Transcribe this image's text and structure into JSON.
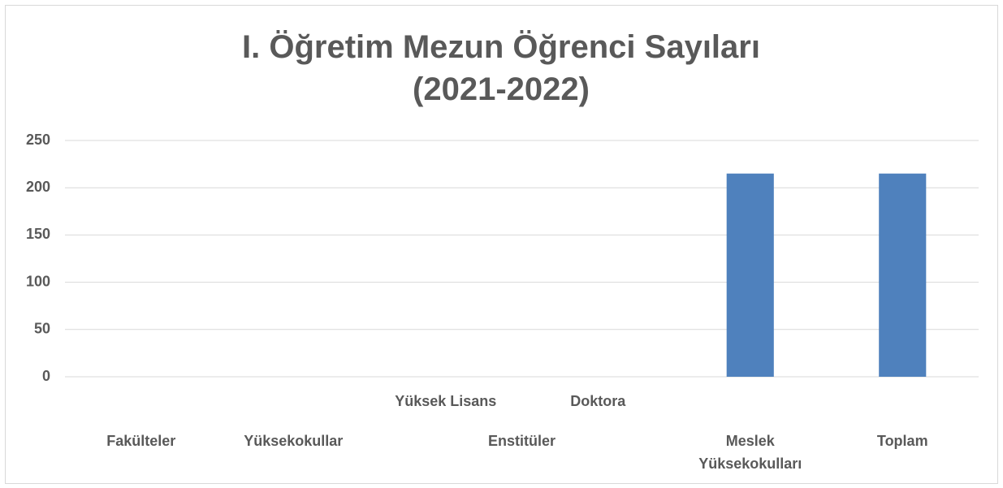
{
  "chart_data": {
    "type": "bar",
    "title": "I. Öğretim Mezun Öğrenci Sayıları (2021-2022)",
    "categories": [
      "Fakülteler",
      "Yüksekokullar",
      "Yüksek Lisans",
      "Doktora",
      "Meslek Yüksekokulları",
      "Toplam"
    ],
    "category_groups": [
      {
        "label": "Enstitüler",
        "members": [
          "Yüksek Lisans",
          "Doktora"
        ]
      }
    ],
    "values": [
      0,
      0,
      0,
      0,
      215,
      215
    ],
    "color": "#4f81bd",
    "ylim": [
      0,
      250
    ],
    "yticks": [
      0,
      50,
      100,
      150,
      200,
      250
    ],
    "grid": true
  }
}
